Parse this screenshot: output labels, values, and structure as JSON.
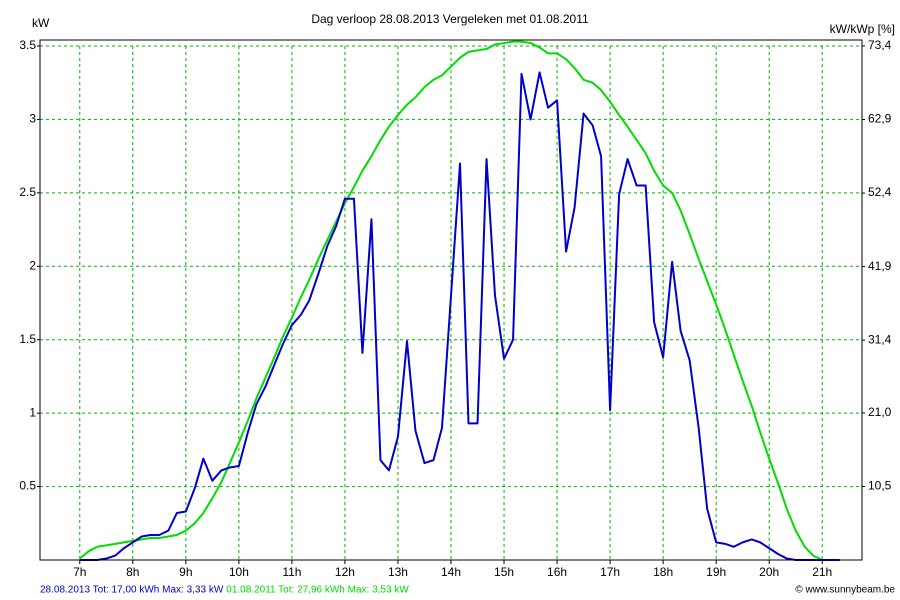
{
  "chart_data": {
    "type": "line",
    "title": "Dag  verloop 28.08.2013   Vergeleken met 01.08.2011",
    "y_label": "kW",
    "y2_label": "kW/kWp [%]",
    "credit": "© www.sunnybeam.be",
    "x": [
      7,
      7.17,
      7.33,
      7.5,
      7.67,
      7.83,
      8,
      8.17,
      8.33,
      8.5,
      8.67,
      8.83,
      9,
      9.17,
      9.33,
      9.5,
      9.67,
      9.83,
      10,
      10.17,
      10.33,
      10.5,
      10.67,
      10.83,
      11,
      11.17,
      11.33,
      11.5,
      11.67,
      11.83,
      12,
      12.17,
      12.33,
      12.5,
      12.67,
      12.83,
      13,
      13.17,
      13.33,
      13.5,
      13.67,
      13.83,
      14,
      14.17,
      14.33,
      14.5,
      14.67,
      14.83,
      15,
      15.17,
      15.33,
      15.5,
      15.67,
      15.83,
      16,
      16.17,
      16.33,
      16.5,
      16.67,
      16.83,
      17,
      17.17,
      17.33,
      17.5,
      17.67,
      17.83,
      18,
      18.17,
      18.33,
      18.5,
      18.67,
      18.83,
      19,
      19.17,
      19.33,
      19.5,
      19.67,
      19.83,
      20,
      20.17,
      20.33,
      20.5,
      20.67,
      20.83,
      21,
      21.17,
      21.33
    ],
    "series": [
      {
        "name": "28.08.2013 Tot: 17,00 kWh Max: 3,33 kW",
        "color": "#0000cc",
        "values": [
          0,
          0,
          0,
          0.01,
          0.03,
          0.08,
          0.12,
          0.16,
          0.17,
          0.17,
          0.2,
          0.32,
          0.33,
          0.49,
          0.69,
          0.54,
          0.61,
          0.63,
          0.64,
          0.87,
          1.06,
          1.18,
          1.33,
          1.47,
          1.6,
          1.67,
          1.77,
          1.95,
          2.14,
          2.27,
          2.46,
          2.46,
          1.41,
          2.32,
          0.68,
          0.61,
          0.84,
          1.49,
          0.88,
          0.66,
          0.68,
          0.9,
          1.8,
          2.7,
          0.93,
          0.93,
          2.73,
          1.8,
          1.37,
          1.5,
          3.31,
          3.0,
          3.32,
          3.08,
          3.13,
          2.1,
          2.4,
          3.04,
          2.96,
          2.75,
          1.02,
          2.49,
          2.73,
          2.55,
          2.55,
          1.62,
          1.38,
          2.03,
          1.56,
          1.36,
          0.9,
          0.35,
          0.12,
          0.11,
          0.09,
          0.12,
          0.14,
          0.12,
          0.08,
          0.04,
          0.01,
          0,
          0,
          0,
          0,
          0,
          0
        ]
      },
      {
        "name": "01.08.2011 Tot: 27,96 kWh Max: 3,53 kW",
        "color": "#00dd00",
        "values": [
          0.01,
          0.06,
          0.09,
          0.1,
          0.11,
          0.12,
          0.13,
          0.14,
          0.15,
          0.15,
          0.16,
          0.17,
          0.2,
          0.25,
          0.32,
          0.42,
          0.53,
          0.66,
          0.8,
          0.95,
          1.1,
          1.24,
          1.38,
          1.52,
          1.65,
          1.79,
          1.91,
          2.05,
          2.18,
          2.3,
          2.43,
          2.54,
          2.65,
          2.75,
          2.86,
          2.95,
          3.03,
          3.1,
          3.15,
          3.22,
          3.27,
          3.3,
          3.36,
          3.42,
          3.46,
          3.47,
          3.48,
          3.51,
          3.52,
          3.53,
          3.53,
          3.52,
          3.49,
          3.45,
          3.45,
          3.41,
          3.35,
          3.27,
          3.25,
          3.2,
          3.12,
          3.03,
          2.95,
          2.86,
          2.77,
          2.65,
          2.55,
          2.5,
          2.38,
          2.22,
          2.05,
          1.9,
          1.74,
          1.57,
          1.4,
          1.22,
          1.05,
          0.87,
          0.69,
          0.52,
          0.35,
          0.2,
          0.09,
          0.03,
          0,
          0,
          0
        ]
      }
    ],
    "xlim": [
      6.25,
      21.75
    ],
    "xticks": [
      {
        "value": 7,
        "label": "7h"
      },
      {
        "value": 8,
        "label": "8h"
      },
      {
        "value": 9,
        "label": "9h"
      },
      {
        "value": 10,
        "label": "10h"
      },
      {
        "value": 11,
        "label": "11h"
      },
      {
        "value": 12,
        "label": "12h"
      },
      {
        "value": 13,
        "label": "13h"
      },
      {
        "value": 14,
        "label": "14h"
      },
      {
        "value": 15,
        "label": "15h"
      },
      {
        "value": 16,
        "label": "16h"
      },
      {
        "value": 17,
        "label": "17h"
      },
      {
        "value": 18,
        "label": "18h"
      },
      {
        "value": 19,
        "label": "19h"
      },
      {
        "value": 20,
        "label": "20h"
      },
      {
        "value": 21,
        "label": "21h"
      }
    ],
    "ylim": [
      0,
      3.5
    ],
    "yticks": [
      0.5,
      1,
      1.5,
      2,
      2.5,
      3,
      3.5
    ],
    "y2lim": [
      0,
      73.4
    ],
    "y2ticks": [
      {
        "value": 10.5,
        "label": "10,5"
      },
      {
        "value": 21.0,
        "label": "21,0"
      },
      {
        "value": 31.4,
        "label": "31,4"
      },
      {
        "value": 41.9,
        "label": "41,9"
      },
      {
        "value": 52.4,
        "label": "52,4"
      },
      {
        "value": 62.9,
        "label": "62,9"
      },
      {
        "value": 73.4,
        "label": "73,4"
      }
    ],
    "grid": true
  }
}
